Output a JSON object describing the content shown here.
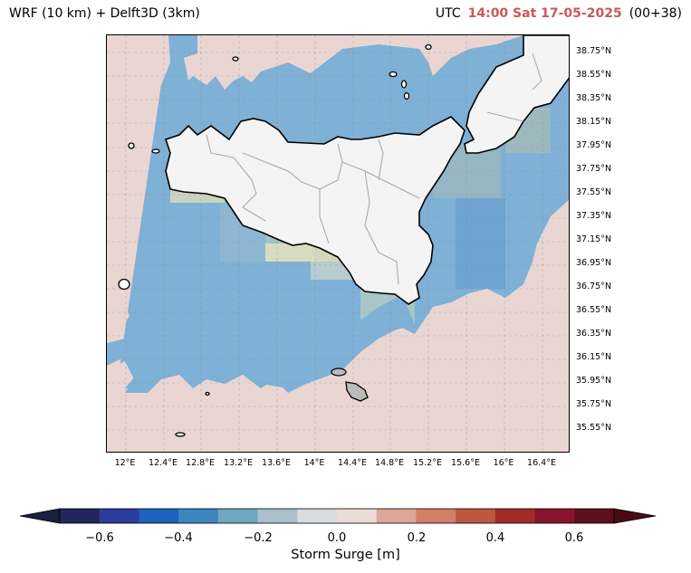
{
  "title_left": "WRF (10 km) + Delft3D (3km)",
  "title_right": {
    "prefix": "UTC",
    "time": "14:00 Sat 17-05-2025",
    "step": "(00+38)",
    "time_color": "#c95a5a"
  },
  "lat_labels": [
    "38.75°N",
    "38.55°N",
    "38.35°N",
    "38.15°N",
    "37.95°N",
    "37.75°N",
    "37.55°N",
    "37.35°N",
    "37.15°N",
    "36.95°N",
    "36.75°N",
    "36.55°N",
    "36.35°N",
    "36.15°N",
    "35.95°N",
    "35.75°N",
    "35.55°N"
  ],
  "lon_labels": [
    "12°E",
    "12.4°E",
    "12.8°E",
    "13.2°E",
    "13.6°E",
    "14°E",
    "14.4°E",
    "14.8°E",
    "15.2°E",
    "15.6°E",
    "16°E",
    "16.4°E"
  ],
  "colorbar": {
    "label": "Storm Surge [m]",
    "ticks": [
      "−0.6",
      "−0.4",
      "−0.2",
      "0.0",
      "0.2",
      "0.4",
      "0.6"
    ],
    "colors": [
      "#20275a",
      "#2b3d9c",
      "#1f61be",
      "#3c86bd",
      "#6ea7be",
      "#a9c0cc",
      "#d9dcde",
      "#ecdcd7",
      "#dca796",
      "#d27f67",
      "#bd5740",
      "#a42a2a",
      "#88142c",
      "#5d0f1e"
    ],
    "under_color": "#1a1e40",
    "over_color": "#4a0a14"
  },
  "legend_colors": {
    "land": "#f4f4f4",
    "sea_positive": "#e9d6d2",
    "sea_negative": "#7fb0d6",
    "malta": "#bbbbbb"
  }
}
